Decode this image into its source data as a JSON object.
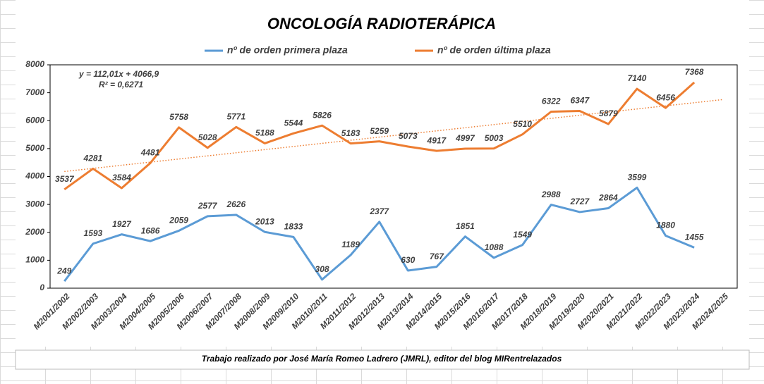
{
  "chart_data": {
    "type": "line",
    "title": "ONCOLOGÍA RADIOTERÁPICA",
    "footer": "Trabajo realizado por José María Romeo Ladrero (JMRL), editor del blog MIRentrelazados",
    "categories": [
      "M2001/2002",
      "M2002/2003",
      "M2003/2004",
      "M2004/2005",
      "M2005/2006",
      "M2006/2007",
      "M2007/2008",
      "M2008/2009",
      "M2009/2010",
      "M2010/2011",
      "M2011/2012",
      "M2012/2013",
      "M2013/2014",
      "M2014/2015",
      "M2015/2016",
      "M2016/2017",
      "M2017/2018",
      "M2018/2019",
      "M2019/2020",
      "M2020/2021",
      "M2021/2022",
      "M2022/2023",
      "M2023/2024",
      "M2024/2025"
    ],
    "series": [
      {
        "name": "nº de orden primera plaza",
        "color": "#5b9bd5",
        "values": [
          249,
          1593,
          1927,
          1686,
          2059,
          2577,
          2626,
          2013,
          1833,
          308,
          1189,
          2377,
          630,
          767,
          1851,
          1088,
          1549,
          2988,
          2727,
          2864,
          3599,
          1880,
          1455,
          null
        ]
      },
      {
        "name": "nº de orden última plaza",
        "color": "#ed7d31",
        "values": [
          3537,
          4281,
          3584,
          4481,
          5758,
          5028,
          5771,
          5188,
          5544,
          5826,
          5183,
          5259,
          5073,
          4917,
          4997,
          5003,
          5510,
          6322,
          6347,
          5879,
          7140,
          6456,
          7368,
          null
        ]
      }
    ],
    "trendline": {
      "series": 1,
      "slope": 112.01,
      "intercept": 4066.9,
      "equation": "y = 112,01x + 4066,9",
      "r2": "R² = 0,6271"
    },
    "ylim": [
      0,
      8000
    ],
    "yticks": [
      0,
      1000,
      2000,
      3000,
      4000,
      5000,
      6000,
      7000,
      8000
    ],
    "grid": false
  }
}
